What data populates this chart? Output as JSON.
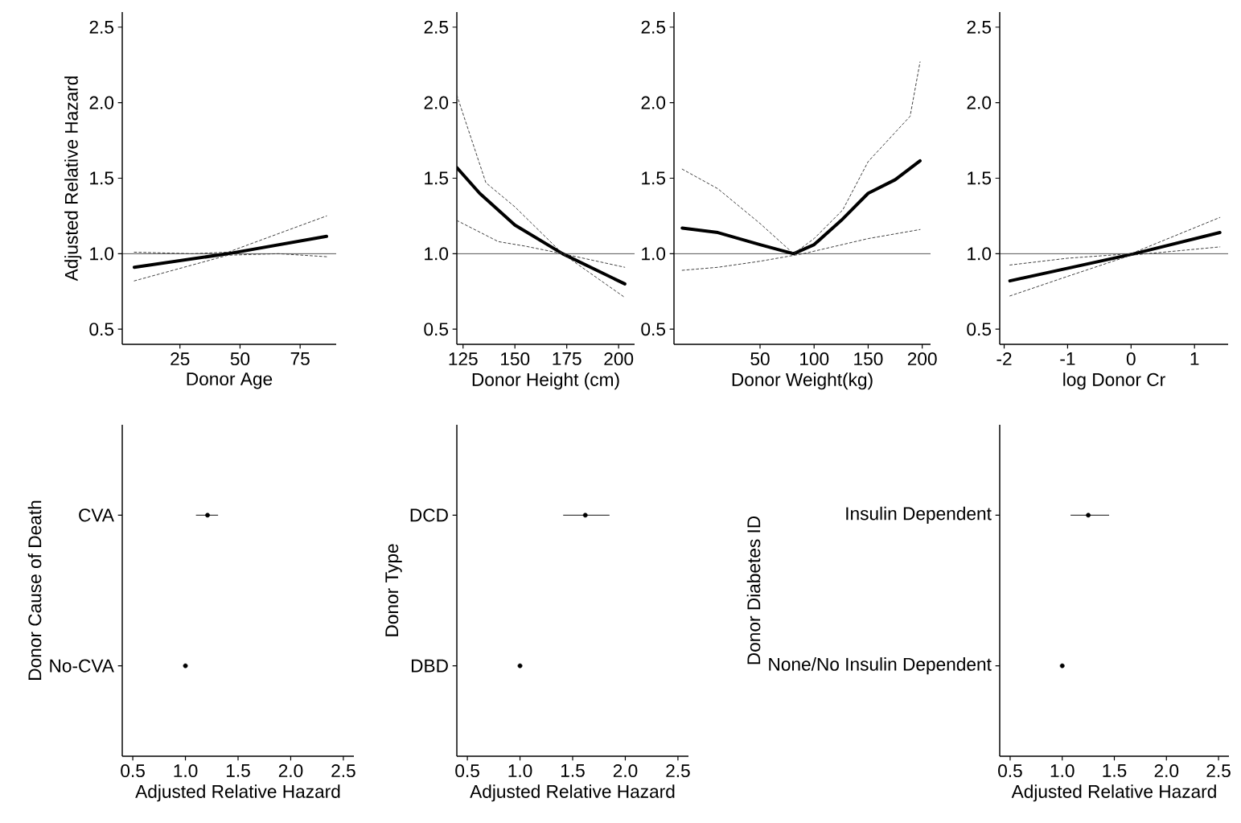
{
  "chart_data": [
    {
      "type": "line",
      "xlabel": "Donor Age",
      "ylabel": "Adjusted Relative Hazard",
      "xlim": [
        1,
        90
      ],
      "xticks": [
        25,
        50,
        75
      ],
      "ylim": [
        0.4,
        2.6
      ],
      "yticks": [
        {
          "value": 0.5,
          "label": "0.5"
        },
        {
          "value": 1.0,
          "label": "1.0"
        },
        {
          "value": 1.5,
          "label": "1.5"
        },
        {
          "value": 2.0,
          "label": "2.0"
        },
        {
          "value": 2.5,
          "label": "2.5"
        }
      ],
      "ref_lines": [
        {
          "axis": "y",
          "value": 1.0,
          "color": "#000000"
        }
      ],
      "series": [
        {
          "color": "#000000",
          "line_style": "solid",
          "x": [
            6,
            45,
            86
          ],
          "values": [
            0.91,
            1.0,
            1.115
          ]
        },
        {
          "color": "#333333",
          "line_style": "dashed",
          "x": [
            6,
            30,
            45,
            86
          ],
          "values": [
            1.01,
            1.0,
            1.01,
            1.25
          ]
        },
        {
          "color": "#333333",
          "line_style": "dashed",
          "x": [
            6,
            45,
            66,
            86
          ],
          "values": [
            0.82,
            0.99,
            1.0,
            0.98
          ]
        }
      ]
    },
    {
      "type": "line",
      "xlabel": "Donor Height (cm)",
      "xlim": [
        122,
        207.7
      ],
      "xticks": [
        125,
        150,
        175,
        200
      ],
      "ylim": [
        0.4,
        2.6
      ],
      "yticks": [
        {
          "value": 0.5,
          "label": "0.5"
        },
        {
          "value": 1.0,
          "label": "1.0"
        },
        {
          "value": 1.5,
          "label": "1.5"
        },
        {
          "value": 2.0,
          "label": "2.0"
        },
        {
          "value": 2.5,
          "label": "2.5"
        }
      ],
      "ref_lines": [
        {
          "axis": "y",
          "value": 1.0,
          "color": "#000000"
        }
      ],
      "series": [
        {
          "color": "#000000",
          "line_style": "solid",
          "x": [
            122,
            133,
            150,
            173,
            203
          ],
          "values": [
            1.57,
            1.4,
            1.19,
            1.0,
            0.8
          ]
        },
        {
          "color": "#333333",
          "line_style": "dashed",
          "x": [
            122,
            136,
            150,
            173,
            203
          ],
          "values": [
            2.05,
            1.47,
            1.31,
            1.0,
            0.91
          ]
        },
        {
          "color": "#333333",
          "line_style": "dashed",
          "x": [
            122,
            142,
            155,
            173,
            203
          ],
          "values": [
            1.22,
            1.08,
            1.05,
            1.0,
            0.71
          ]
        }
      ]
    },
    {
      "type": "line",
      "xlabel": "Donor Weight(kg)",
      "xlim": [
        -29.6,
        207.7
      ],
      "xticks": [
        50,
        100,
        150,
        200
      ],
      "ylim": [
        0.4,
        2.6
      ],
      "yticks": [
        {
          "value": 0.5,
          "label": "0.5"
        },
        {
          "value": 1.0,
          "label": "1.0"
        },
        {
          "value": 1.5,
          "label": "1.5"
        },
        {
          "value": 2.0,
          "label": "2.0"
        },
        {
          "value": 2.5,
          "label": "2.5"
        }
      ],
      "ref_lines": [
        {
          "axis": "y",
          "value": 1.0,
          "color": "#000000"
        }
      ],
      "series": [
        {
          "color": "#000000",
          "line_style": "solid",
          "x": [
            -22,
            11,
            50,
            81,
            100,
            125,
            150,
            175,
            198
          ],
          "values": [
            1.17,
            1.14,
            1.06,
            1.0,
            1.06,
            1.22,
            1.4,
            1.49,
            1.615
          ]
        },
        {
          "color": "#333333",
          "line_style": "dashed",
          "x": [
            -22,
            11,
            50,
            81,
            100,
            126.5,
            150,
            188.8,
            198
          ],
          "values": [
            1.56,
            1.43,
            1.2,
            1.0,
            1.1,
            1.29,
            1.61,
            1.91,
            2.27
          ]
        },
        {
          "color": "#333333",
          "line_style": "dashed",
          "x": [
            -22,
            11,
            50,
            90,
            150,
            198
          ],
          "values": [
            0.89,
            0.91,
            0.95,
            1.0,
            1.1,
            1.16
          ]
        }
      ]
    },
    {
      "type": "line",
      "xlabel": "log Donor Cr",
      "xlim": [
        -2.07,
        1.53
      ],
      "xticks": [
        -2,
        -1,
        0,
        1
      ],
      "ylim": [
        0.4,
        2.6
      ],
      "yticks": [
        {
          "value": 0.5,
          "label": "0.5"
        },
        {
          "value": 1.0,
          "label": "1.0"
        },
        {
          "value": 1.5,
          "label": "1.5"
        },
        {
          "value": 2.0,
          "label": "2.0"
        },
        {
          "value": 2.5,
          "label": "2.5"
        }
      ],
      "ref_lines": [
        {
          "axis": "y",
          "value": 1.0,
          "color": "#000000"
        }
      ],
      "series": [
        {
          "color": "#000000",
          "line_style": "solid",
          "x": [
            -1.91,
            0.05,
            1.4
          ],
          "values": [
            0.82,
            1.0,
            1.14
          ]
        },
        {
          "color": "#333333",
          "line_style": "dashed",
          "x": [
            -1.91,
            -1.0,
            0.0,
            1.4
          ],
          "values": [
            0.925,
            0.97,
            1.0,
            1.24
          ]
        },
        {
          "color": "#333333",
          "line_style": "dashed",
          "x": [
            -1.91,
            -1.0,
            0.0,
            1.4
          ],
          "values": [
            0.72,
            0.85,
            0.99,
            1.045
          ]
        }
      ]
    },
    {
      "type": "scatter",
      "orientation": "horizontal",
      "xlabel": "Adjusted Relative Hazard",
      "ylabel": "Donor Cause of Death",
      "categories": [
        "CVA",
        "No-CVA"
      ],
      "values": [
        1.21,
        1.0
      ],
      "errors": [
        [
          1.1,
          1.31
        ],
        null
      ],
      "xlim": [
        0.4,
        2.6
      ],
      "xticks": [
        {
          "value": 0.5,
          "label": "0.5"
        },
        {
          "value": 1.0,
          "label": "1.0"
        },
        {
          "value": 1.5,
          "label": "1.5"
        },
        {
          "value": 2.0,
          "label": "2.0"
        },
        {
          "value": 2.5,
          "label": "2.5"
        }
      ],
      "color": "#000000"
    },
    {
      "type": "scatter",
      "orientation": "horizontal",
      "xlabel": "Adjusted Relative Hazard",
      "ylabel": "Donor Type",
      "categories": [
        "DCD",
        "DBD"
      ],
      "values": [
        1.62,
        1.0
      ],
      "errors": [
        [
          1.41,
          1.85
        ],
        null
      ],
      "xlim": [
        0.4,
        2.6
      ],
      "xticks": [
        {
          "value": 0.5,
          "label": "0.5"
        },
        {
          "value": 1.0,
          "label": "1.0"
        },
        {
          "value": 1.5,
          "label": "1.5"
        },
        {
          "value": 2.0,
          "label": "2.0"
        },
        {
          "value": 2.5,
          "label": "2.5"
        }
      ],
      "color": "#000000"
    },
    {
      "type": "scatter",
      "orientation": "horizontal",
      "xlabel": "Adjusted Relative Hazard",
      "ylabel": "Donor Diabetes ID",
      "categories": [
        "Insulin Dependent",
        "None/No Insulin Dependent"
      ],
      "values": [
        1.25,
        1.0
      ],
      "errors": [
        [
          1.08,
          1.45
        ],
        null
      ],
      "xlim": [
        0.4,
        2.6
      ],
      "xticks": [
        {
          "value": 0.5,
          "label": "0.5"
        },
        {
          "value": 1.0,
          "label": "1.0"
        },
        {
          "value": 1.5,
          "label": "1.5"
        },
        {
          "value": 2.0,
          "label": "2.0"
        },
        {
          "value": 2.5,
          "label": "2.5"
        }
      ],
      "color": "#000000"
    }
  ]
}
